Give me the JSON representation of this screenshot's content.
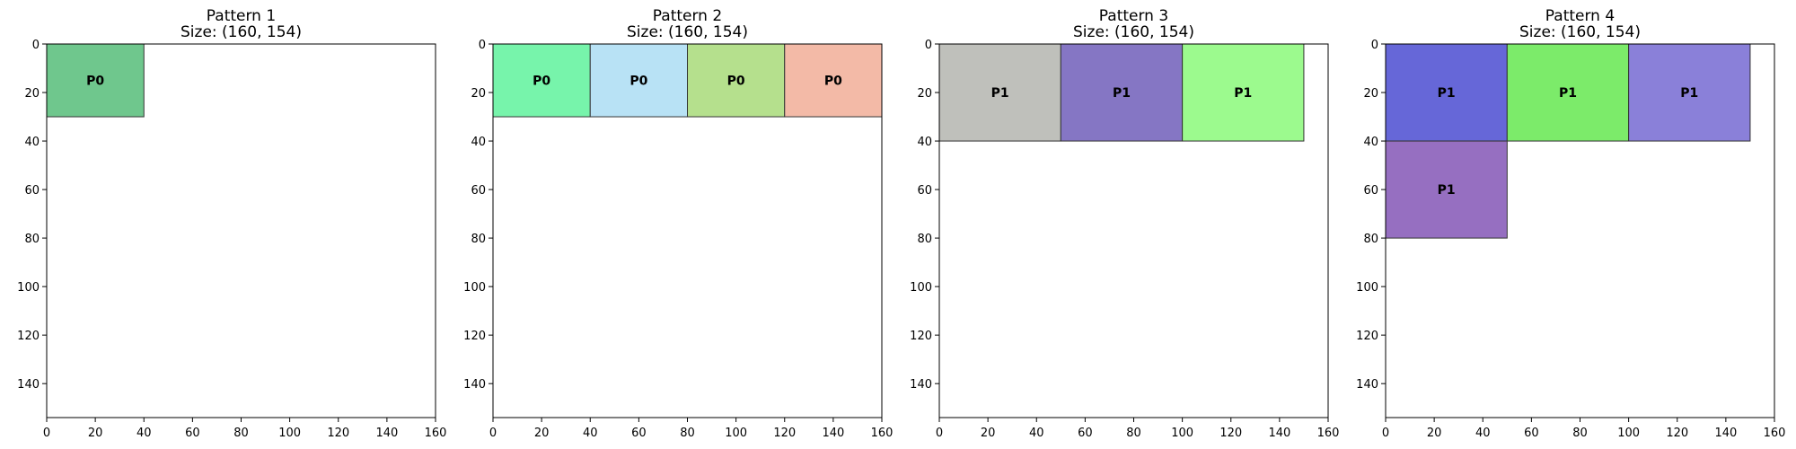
{
  "chart_data": [
    {
      "type": "rectangles",
      "title": "Pattern 1",
      "subtitle": "Size: (160, 154)",
      "xlim": [
        0,
        160
      ],
      "ylim": [
        0,
        154
      ],
      "y_inverted": true,
      "xticks": [
        0,
        20,
        40,
        60,
        80,
        100,
        120,
        140,
        160
      ],
      "yticks": [
        0,
        20,
        40,
        60,
        80,
        100,
        120,
        140
      ],
      "rects": [
        {
          "x": 0,
          "y": 0,
          "w": 40,
          "h": 30,
          "label": "P0",
          "color": "#6fc78d"
        }
      ]
    },
    {
      "type": "rectangles",
      "title": "Pattern 2",
      "subtitle": "Size: (160, 154)",
      "xlim": [
        0,
        160
      ],
      "ylim": [
        0,
        154
      ],
      "y_inverted": true,
      "xticks": [
        0,
        20,
        40,
        60,
        80,
        100,
        120,
        140,
        160
      ],
      "yticks": [
        0,
        20,
        40,
        60,
        80,
        100,
        120,
        140
      ],
      "rects": [
        {
          "x": 0,
          "y": 0,
          "w": 40,
          "h": 30,
          "label": "P0",
          "color": "#77f4ab"
        },
        {
          "x": 40,
          "y": 0,
          "w": 40,
          "h": 30,
          "label": "P0",
          "color": "#b8e2f5"
        },
        {
          "x": 80,
          "y": 0,
          "w": 40,
          "h": 30,
          "label": "P0",
          "color": "#b5e08d"
        },
        {
          "x": 120,
          "y": 0,
          "w": 40,
          "h": 30,
          "label": "P0",
          "color": "#f3baa7"
        }
      ]
    },
    {
      "type": "rectangles",
      "title": "Pattern 3",
      "subtitle": "Size: (160, 154)",
      "xlim": [
        0,
        160
      ],
      "ylim": [
        0,
        154
      ],
      "y_inverted": true,
      "xticks": [
        0,
        20,
        40,
        60,
        80,
        100,
        120,
        140,
        160
      ],
      "yticks": [
        0,
        20,
        40,
        60,
        80,
        100,
        120,
        140
      ],
      "rects": [
        {
          "x": 0,
          "y": 0,
          "w": 50,
          "h": 40,
          "label": "P1",
          "color": "#bfc0bb"
        },
        {
          "x": 50,
          "y": 0,
          "w": 50,
          "h": 40,
          "label": "P1",
          "color": "#8576c4"
        },
        {
          "x": 100,
          "y": 0,
          "w": 50,
          "h": 40,
          "label": "P1",
          "color": "#9cfa8e"
        }
      ]
    },
    {
      "type": "rectangles",
      "title": "Pattern 4",
      "subtitle": "Size: (160, 154)",
      "xlim": [
        0,
        160
      ],
      "ylim": [
        0,
        154
      ],
      "y_inverted": true,
      "xticks": [
        0,
        20,
        40,
        60,
        80,
        100,
        120,
        140,
        160
      ],
      "yticks": [
        0,
        20,
        40,
        60,
        80,
        100,
        120,
        140
      ],
      "rects": [
        {
          "x": 0,
          "y": 0,
          "w": 50,
          "h": 40,
          "label": "P1",
          "color": "#6667d8"
        },
        {
          "x": 50,
          "y": 0,
          "w": 50,
          "h": 40,
          "label": "P1",
          "color": "#7ceb6a"
        },
        {
          "x": 100,
          "y": 0,
          "w": 50,
          "h": 40,
          "label": "P1",
          "color": "#8a80d9"
        },
        {
          "x": 0,
          "y": 40,
          "w": 50,
          "h": 40,
          "label": "P1",
          "color": "#966fc1"
        }
      ]
    }
  ]
}
